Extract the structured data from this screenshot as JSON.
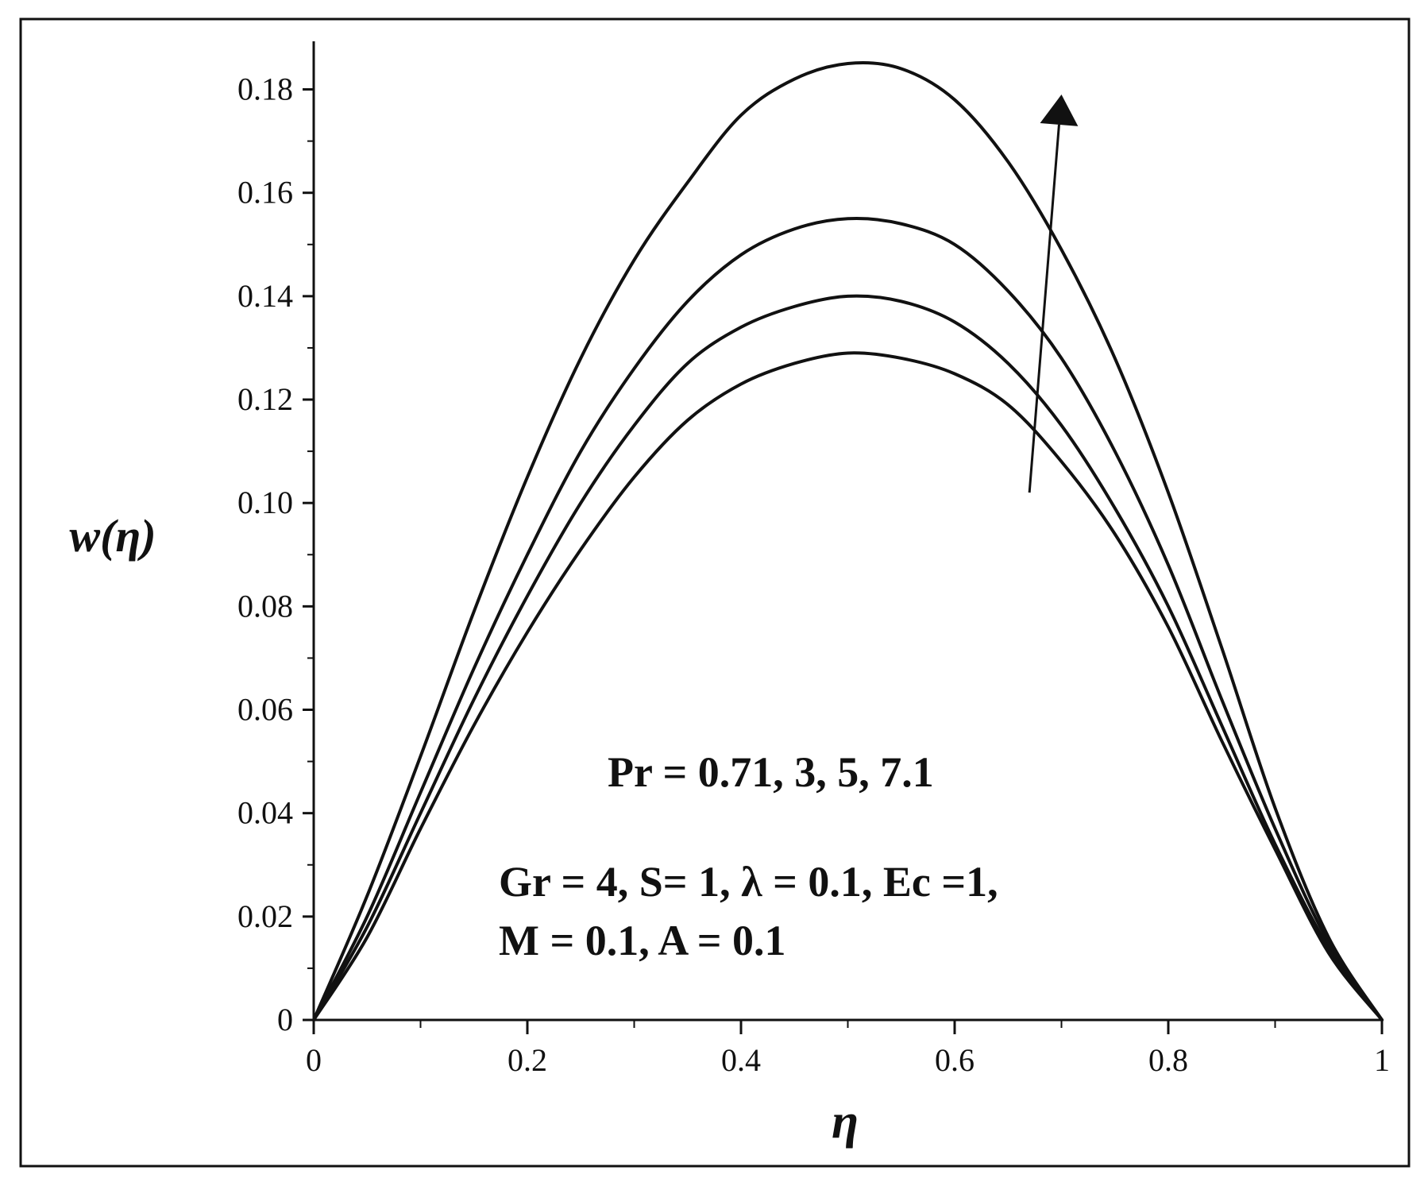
{
  "colors": {
    "line": "#111111",
    "frame": "#111111",
    "background": "#ffffff"
  },
  "chart_data": {
    "type": "line",
    "xlabel": "η",
    "ylabel": "w(η)",
    "xlim": [
      0,
      1
    ],
    "ylim": [
      0,
      0.185
    ],
    "x_ticks": [
      0,
      0.2,
      0.4,
      0.6,
      0.8,
      1
    ],
    "x_tick_labels": [
      "0",
      "0.2",
      "0.4",
      "0.6",
      "0.8",
      "1"
    ],
    "x_minor_ticks": [
      0.1,
      0.3,
      0.5,
      0.7,
      0.9
    ],
    "y_ticks": [
      0,
      0.02,
      0.04,
      0.06,
      0.08,
      0.1,
      0.12,
      0.14,
      0.16,
      0.18
    ],
    "y_tick_labels": [
      "0",
      "0.02",
      "0.04",
      "0.06",
      "0.08",
      "0.10",
      "0.12",
      "0.14",
      "0.16",
      "0.18"
    ],
    "y_minor_ticks": [
      0.01,
      0.03,
      0.05,
      0.07,
      0.09,
      0.11,
      0.13,
      0.15,
      0.17
    ],
    "grid": false,
    "x": [
      0,
      0.05,
      0.1,
      0.15,
      0.2,
      0.25,
      0.3,
      0.35,
      0.4,
      0.45,
      0.5,
      0.55,
      0.6,
      0.65,
      0.7,
      0.75,
      0.8,
      0.85,
      0.9,
      0.95,
      1
    ],
    "series": [
      {
        "values": [
          0,
          0.016,
          0.037,
          0.057,
          0.075,
          0.091,
          0.105,
          0.116,
          0.123,
          0.127,
          0.129,
          0.128,
          0.125,
          0.119,
          0.108,
          0.094,
          0.076,
          0.054,
          0.033,
          0.013,
          0
        ]
      },
      {
        "values": [
          0,
          0.018,
          0.04,
          0.062,
          0.082,
          0.1,
          0.115,
          0.127,
          0.134,
          0.138,
          0.14,
          0.139,
          0.135,
          0.127,
          0.115,
          0.099,
          0.08,
          0.057,
          0.034,
          0.014,
          0
        ]
      },
      {
        "values": [
          0,
          0.02,
          0.044,
          0.068,
          0.09,
          0.11,
          0.126,
          0.139,
          0.148,
          0.153,
          0.155,
          0.154,
          0.15,
          0.141,
          0.128,
          0.11,
          0.088,
          0.062,
          0.037,
          0.015,
          0
        ]
      },
      {
        "values": [
          0,
          0.024,
          0.051,
          0.079,
          0.105,
          0.128,
          0.147,
          0.162,
          0.175,
          0.182,
          0.185,
          0.184,
          0.178,
          0.166,
          0.149,
          0.128,
          0.102,
          0.072,
          0.041,
          0.016,
          0
        ]
      }
    ],
    "arrow": {
      "from": [
        0.67,
        0.102
      ],
      "to": [
        0.7,
        0.179
      ]
    },
    "annotations": {
      "line1": "Pr = 0.71, 3, 5, 7.1",
      "line2": "Gr = 4, S= 1, λ = 0.1, Ec =1,",
      "line3": "M = 0.1, A = 0.1"
    }
  }
}
